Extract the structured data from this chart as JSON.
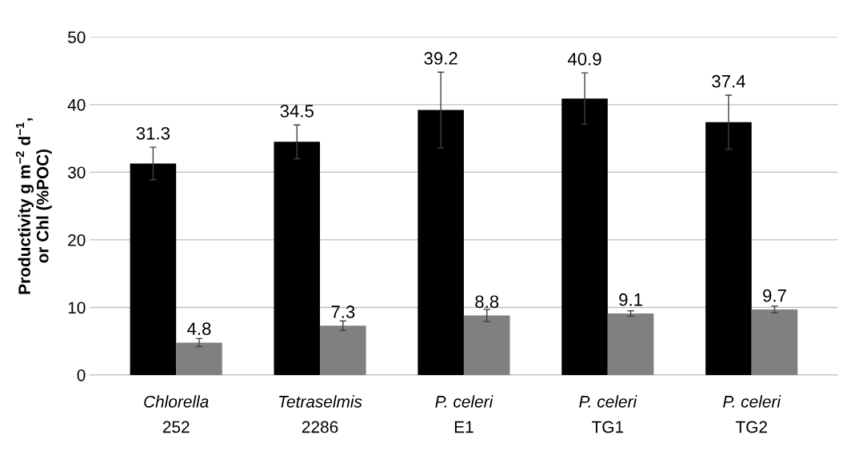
{
  "chart_data": {
    "type": "bar",
    "ylabel": "Productivity g m$^{−2}$ d$^{−1}$,\nor Chl (%POC)",
    "categories": [
      "Chlorella\n252",
      "Tetraselmis\n2286",
      "P. celeri\nE1",
      "P. celeri\nTG1",
      "P. celeri\nTG2"
    ],
    "series": [
      {
        "color": "#000000",
        "values": [
          31.3,
          34.5,
          39.2,
          40.9,
          37.4
        ],
        "errors": [
          2.4,
          2.5,
          5.6,
          3.8,
          4.0
        ]
      },
      {
        "color": "#808080",
        "values": [
          4.8,
          7.3,
          8.8,
          9.1,
          9.7
        ],
        "errors": [
          0.6,
          0.7,
          0.9,
          0.4,
          0.5
        ]
      }
    ],
    "ylim": [
      0,
      50
    ],
    "yticks": [
      0,
      10,
      20,
      30,
      40,
      50
    ],
    "grid": "y",
    "data_labels": true,
    "legend": false
  }
}
